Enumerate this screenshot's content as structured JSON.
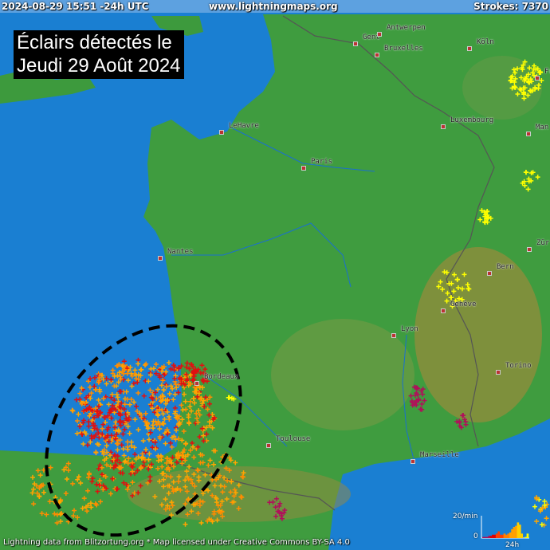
{
  "header": {
    "timestamp": "2024-08-29 15:51 -24h UTC",
    "site": "www.lightningmaps.org",
    "strokes": "Strokes: 7370"
  },
  "title": {
    "line1": "Éclairs détectés le",
    "line2": "Jeudi 29 Août 2024"
  },
  "cities": [
    {
      "name": "Gent"
    },
    {
      "name": "Antwerpen"
    },
    {
      "name": "Bruxelles"
    },
    {
      "name": "Köln"
    },
    {
      "name": "Luxembourg"
    },
    {
      "name": "Man"
    },
    {
      "name": "Fr"
    },
    {
      "name": "LeHavre"
    },
    {
      "name": "Paris"
    },
    {
      "name": "Nantes"
    },
    {
      "name": "Zür"
    },
    {
      "name": "Bern"
    },
    {
      "name": "Genève"
    },
    {
      "name": "Lyon"
    },
    {
      "name": "Torino"
    },
    {
      "name": "Bordeaux"
    },
    {
      "name": "Toulouse"
    },
    {
      "name": "Marseille"
    }
  ],
  "footer": {
    "credit": "Lightning data from Blitzortung.org  *  Map licensed under Creative Commons BY-SA 4.0"
  },
  "histogram": {
    "ymax_label": "20/min",
    "ymin_label": "0",
    "xlabel": "24h",
    "values_per_min": [
      1,
      1,
      1,
      2,
      2,
      3,
      3,
      4,
      6,
      3,
      3,
      4,
      3,
      4,
      5,
      8,
      10,
      11,
      14,
      12,
      4,
      0,
      1,
      4
    ],
    "colors": [
      "#b0105a",
      "#e00000",
      "#ff4000",
      "#ff8000",
      "#ffa000",
      "#ffd000",
      "#ffff00"
    ]
  },
  "strike_colors": {
    "oldest": "#b0105a",
    "old": "#e01010",
    "mid": "#ff8c00",
    "recent": "#ffa500",
    "newest": "#ffff00"
  }
}
